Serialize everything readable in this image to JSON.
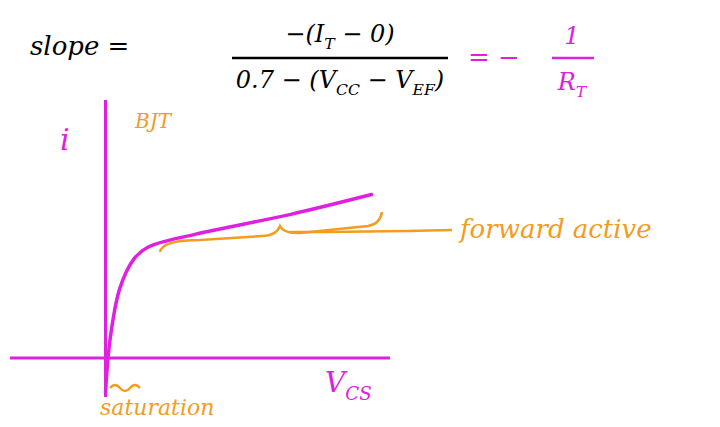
{
  "chart_data": {
    "type": "line",
    "tick_labels": false,
    "xlim": [
      -10,
      30
    ],
    "ylim": [
      -4,
      26
    ],
    "x": [
      0,
      0.5,
      1.5,
      3,
      4.5,
      9.5,
      19.5,
      28
    ],
    "series": [
      {
        "color": "#e020e0",
        "values": [
          -3.5,
          2,
          7,
          10,
          11.2,
          12.5,
          14.5,
          16.5
        ]
      }
    ],
    "x_label": {
      "parts": [
        {
          "text": "V"
        },
        {
          "sub": "CS"
        }
      ],
      "color": "#e020e0"
    },
    "y_label": {
      "parts": [
        {
          "text": "i"
        }
      ],
      "color": "#e020e0"
    },
    "equation": {
      "lhs": "slope =",
      "numerator": [
        {
          "text": "−(I"
        },
        {
          "sub": "T"
        },
        {
          "text": " − 0)"
        }
      ],
      "denominator": [
        {
          "text": "0.7 − (V"
        },
        {
          "sub": "CC"
        },
        {
          "text": " − V"
        },
        {
          "sub": "EF"
        },
        {
          "text": ")"
        }
      ],
      "color": "#000000",
      "result_sign": "= −",
      "result_numerator": [
        {
          "text": "1"
        }
      ],
      "result_denominator": [
        {
          "text": "R"
        },
        {
          "sub": "T"
        }
      ],
      "result_color": "#e020e0"
    },
    "annotations": [
      {
        "text": "BJT",
        "color": "#f39c1e"
      },
      {
        "text": "forward active",
        "color": "#f39c1e"
      },
      {
        "text": "saturation",
        "color": "#f39c1e"
      }
    ]
  }
}
